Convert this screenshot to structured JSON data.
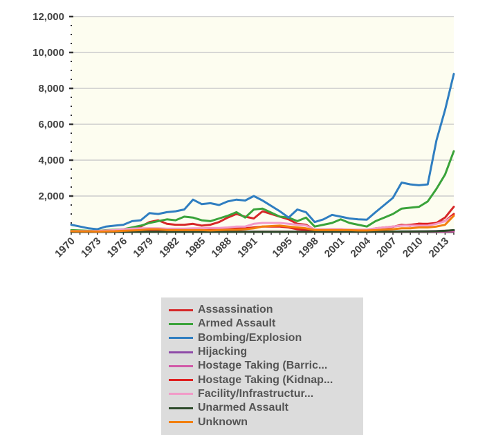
{
  "chart_data": {
    "type": "line",
    "y_ticks": [
      "12,000",
      "10,000",
      "8,000",
      "6,000",
      "4,000",
      "2,000"
    ],
    "ylim": [
      0,
      12000
    ],
    "x_ticks": [
      "1970",
      "1973",
      "1976",
      "1979",
      "1982",
      "1985",
      "1988",
      "1991",
      "1995",
      "1998",
      "2001",
      "2004",
      "2007",
      "2010",
      "2013"
    ],
    "x": [
      1970,
      1971,
      1972,
      1973,
      1974,
      1975,
      1976,
      1977,
      1978,
      1979,
      1980,
      1981,
      1982,
      1983,
      1984,
      1985,
      1986,
      1987,
      1988,
      1989,
      1990,
      1991,
      1992,
      1994,
      1995,
      1996,
      1997,
      1998,
      1999,
      2000,
      2001,
      2002,
      2003,
      2004,
      2005,
      2006,
      2007,
      2008,
      2009,
      2010,
      2011,
      2012,
      2013,
      2014
    ],
    "grid": true,
    "legend_position": "bottom",
    "series": [
      {
        "name": "Assassination",
        "color": "#d62728",
        "values": [
          50,
          40,
          30,
          30,
          60,
          80,
          120,
          200,
          300,
          550,
          650,
          450,
          400,
          400,
          450,
          350,
          400,
          550,
          800,
          1000,
          850,
          750,
          1150,
          850,
          700,
          450,
          400,
          120,
          130,
          150,
          150,
          100,
          80,
          70,
          160,
          220,
          280,
          400,
          340,
          460,
          420,
          500,
          800,
          1400
        ]
      },
      {
        "name": "Armed Assault",
        "color": "#3aa33a",
        "values": [
          100,
          80,
          60,
          50,
          100,
          120,
          150,
          250,
          350,
          500,
          600,
          700,
          650,
          850,
          800,
          650,
          600,
          750,
          900,
          1100,
          800,
          1250,
          1300,
          850,
          800,
          600,
          800,
          300,
          400,
          500,
          700,
          500,
          400,
          300,
          600,
          800,
          1000,
          1300,
          1350,
          1400,
          1700,
          2400,
          3200,
          4500
        ]
      },
      {
        "name": "Bombing/Explosion",
        "color": "#2f7ec1",
        "values": [
          400,
          300,
          200,
          150,
          300,
          350,
          400,
          600,
          650,
          1050,
          1000,
          1100,
          1150,
          1250,
          1800,
          1550,
          1600,
          1500,
          1700,
          1800,
          1750,
          2000,
          1750,
          1150,
          800,
          1250,
          1100,
          550,
          700,
          950,
          850,
          750,
          700,
          680,
          1100,
          1500,
          1900,
          2750,
          2650,
          2600,
          2650,
          5100,
          6800,
          8800
        ]
      },
      {
        "name": "Hijacking",
        "color": "#8e4aa8",
        "values": [
          20,
          20,
          15,
          15,
          15,
          15,
          20,
          20,
          20,
          20,
          20,
          20,
          20,
          20,
          20,
          20,
          15,
          15,
          15,
          15,
          15,
          15,
          15,
          15,
          15,
          15,
          15,
          10,
          10,
          10,
          10,
          10,
          10,
          10,
          15,
          15,
          20,
          25,
          30,
          30,
          40,
          50,
          70,
          90
        ]
      },
      {
        "name": "Hostage Taking (Barric...",
        "color": "#d25aa8",
        "values": [
          5,
          5,
          5,
          5,
          10,
          10,
          15,
          15,
          20,
          20,
          20,
          20,
          20,
          20,
          20,
          15,
          15,
          15,
          20,
          20,
          20,
          20,
          20,
          20,
          15,
          10,
          10,
          10,
          10,
          10,
          10,
          10,
          10,
          10,
          10,
          10,
          10,
          15,
          15,
          20,
          20,
          20,
          25,
          30
        ]
      },
      {
        "name": "Hostage Taking (Kidnap...",
        "color": "#e02020",
        "values": [
          30,
          30,
          30,
          30,
          40,
          40,
          50,
          60,
          80,
          100,
          120,
          110,
          110,
          110,
          120,
          110,
          120,
          140,
          160,
          180,
          200,
          250,
          300,
          300,
          250,
          150,
          120,
          90,
          90,
          90,
          100,
          100,
          100,
          100,
          200,
          250,
          300,
          350,
          400,
          450,
          450,
          500,
          600,
          1000
        ]
      },
      {
        "name": "Facility/Infrastructur...",
        "color": "#f29ac8",
        "values": [
          50,
          50,
          50,
          50,
          80,
          100,
          150,
          180,
          200,
          200,
          200,
          180,
          180,
          180,
          200,
          200,
          220,
          220,
          250,
          300,
          300,
          450,
          500,
          500,
          450,
          400,
          350,
          150,
          150,
          150,
          150,
          130,
          130,
          130,
          200,
          250,
          300,
          350,
          350,
          350,
          350,
          450,
          600,
          900
        ]
      },
      {
        "name": "Unarmed Assault",
        "color": "#2d4a2a",
        "values": [
          5,
          5,
          5,
          5,
          5,
          5,
          10,
          10,
          10,
          10,
          10,
          10,
          10,
          10,
          10,
          10,
          10,
          10,
          10,
          10,
          10,
          10,
          10,
          10,
          10,
          10,
          10,
          10,
          10,
          10,
          10,
          10,
          10,
          10,
          15,
          15,
          20,
          25,
          25,
          30,
          30,
          40,
          60,
          100
        ]
      },
      {
        "name": "Unknown",
        "color": "#f27f0c",
        "values": [
          40,
          30,
          30,
          20,
          30,
          40,
          60,
          80,
          100,
          150,
          150,
          100,
          100,
          100,
          100,
          100,
          80,
          100,
          120,
          120,
          150,
          200,
          300,
          350,
          300,
          250,
          200,
          100,
          100,
          100,
          100,
          100,
          80,
          80,
          100,
          130,
          150,
          200,
          200,
          250,
          250,
          300,
          400,
          900
        ]
      }
    ]
  }
}
